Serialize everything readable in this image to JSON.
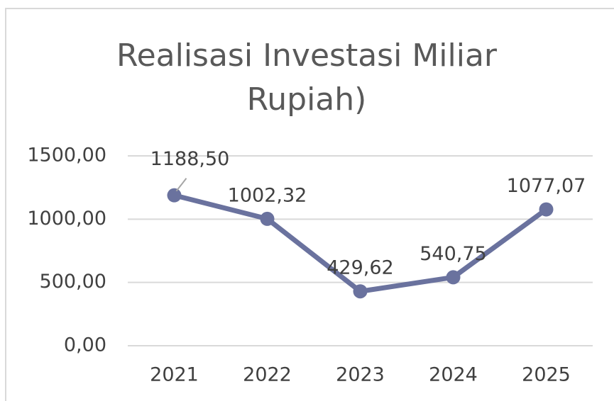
{
  "chart_data": {
    "type": "line",
    "title": "Realisasi Investasi Miliar Rupiah)",
    "categories": [
      "2021",
      "2022",
      "2023",
      "2024",
      "2025"
    ],
    "series": [
      {
        "name": "Realisasi Investasi",
        "color": "#6a729e",
        "values": [
          1188.5,
          1002.32,
          429.62,
          540.75,
          1077.07
        ],
        "value_labels": [
          "1188,50",
          "1002,32",
          "429,62",
          "540,75",
          "1077,07"
        ]
      }
    ],
    "ylim": [
      0,
      1500
    ],
    "yticks": [
      {
        "value": 0,
        "label": "0,00"
      },
      {
        "value": 500,
        "label": "500,00"
      },
      {
        "value": 1000,
        "label": "1000,00"
      },
      {
        "value": 1500,
        "label": "1500,00"
      }
    ],
    "grid": true
  }
}
